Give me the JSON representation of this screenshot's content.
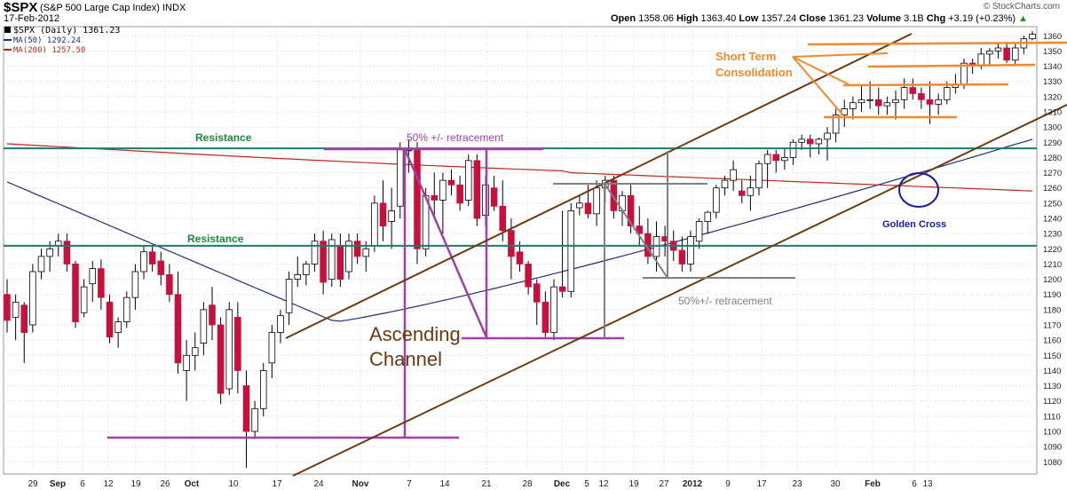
{
  "header": {
    "symbol": "$SPX",
    "index_name": "(S&P 500 Large Cap Index) INDX",
    "date": "17-Feb-2012",
    "brand": "© StockCharts.com",
    "open_label": "Open",
    "open": "1358.06",
    "high_label": "High",
    "high": "1363.40",
    "low_label": "Low",
    "low": "1357.24",
    "close_label": "Close",
    "close": "1361.23",
    "volume_label": "Volume",
    "volume": "3.1B",
    "chg_label": "Chg",
    "chg": "+3.19 (+0.23%)"
  },
  "legend": {
    "price": "$SPX (Daily) 1361.23",
    "ma50": "MA(50) 1292.24",
    "ma200": "MA(200) 1257.50"
  },
  "colors": {
    "up": "#ffffff",
    "down": "#c8103c",
    "ma50": "#1f2d7a",
    "ma200": "#c0281e",
    "teal": "#1e7a6e",
    "purple": "#a040a8",
    "brown": "#6b3a10",
    "orange": "#f08a30",
    "gray": "#808080",
    "blue": "#1a1aa8"
  },
  "annotations": {
    "resistance_upper": "Resistance",
    "resistance_lower": "Resistance",
    "retracement_1": "50% +/-  retracement",
    "retracement_2": "50%+/- retracement",
    "ascending_channel_1": "Ascending",
    "ascending_channel_2": "Channel",
    "short_term_1": "Short Term",
    "short_term_2": "Consolidation",
    "golden_cross": "Golden Cross"
  },
  "chart_data": {
    "type": "candlestick",
    "title": "$SPX (S&P 500 Large Cap Index) INDX",
    "ylim": [
      1072,
      1366
    ],
    "y_ticks": [
      1080,
      1090,
      1100,
      1110,
      1120,
      1130,
      1140,
      1150,
      1160,
      1170,
      1180,
      1190,
      1200,
      1210,
      1220,
      1230,
      1240,
      1250,
      1260,
      1270,
      1280,
      1290,
      1300,
      1310,
      1320,
      1330,
      1340,
      1350,
      1360
    ],
    "x_ticks": [
      "29",
      "Sep",
      "6",
      "12",
      "19",
      "26",
      "Oct",
      "10",
      "17",
      "24",
      "Nov",
      "7",
      "14",
      "21",
      "28",
      "Dec",
      "5",
      "12",
      "19",
      "27",
      "2012",
      "9",
      "17",
      "23",
      "30",
      "Feb",
      "6",
      "13"
    ],
    "resistance_levels": [
      1286,
      1222
    ],
    "candles": [
      [
        1190,
        1200,
        1165,
        1173
      ],
      [
        1175,
        1190,
        1160,
        1185
      ],
      [
        1183,
        1185,
        1145,
        1165
      ],
      [
        1170,
        1210,
        1165,
        1205
      ],
      [
        1205,
        1220,
        1200,
        1215
      ],
      [
        1215,
        1225,
        1205,
        1220
      ],
      [
        1222,
        1230,
        1215,
        1225
      ],
      [
        1225,
        1230,
        1205,
        1210
      ],
      [
        1210,
        1212,
        1168,
        1172
      ],
      [
        1178,
        1200,
        1175,
        1195
      ],
      [
        1197,
        1212,
        1185,
        1207
      ],
      [
        1207,
        1213,
        1180,
        1188
      ],
      [
        1185,
        1190,
        1158,
        1162
      ],
      [
        1165,
        1175,
        1155,
        1172
      ],
      [
        1172,
        1192,
        1168,
        1188
      ],
      [
        1188,
        1210,
        1180,
        1205
      ],
      [
        1205,
        1222,
        1200,
        1218
      ],
      [
        1218,
        1222,
        1205,
        1210
      ],
      [
        1212,
        1218,
        1196,
        1203
      ],
      [
        1203,
        1210,
        1185,
        1190
      ],
      [
        1190,
        1205,
        1138,
        1145
      ],
      [
        1140,
        1160,
        1120,
        1150
      ],
      [
        1150,
        1165,
        1140,
        1155
      ],
      [
        1158,
        1185,
        1150,
        1180
      ],
      [
        1183,
        1195,
        1160,
        1170
      ],
      [
        1170,
        1175,
        1118,
        1125
      ],
      [
        1128,
        1185,
        1124,
        1180
      ],
      [
        1175,
        1185,
        1125,
        1140
      ],
      [
        1130,
        1140,
        1076,
        1100
      ],
      [
        1100,
        1120,
        1095,
        1115
      ],
      [
        1115,
        1145,
        1110,
        1140
      ],
      [
        1145,
        1170,
        1135,
        1165
      ],
      [
        1165,
        1180,
        1158,
        1176
      ],
      [
        1178,
        1205,
        1170,
        1200
      ],
      [
        1200,
        1215,
        1195,
        1203
      ],
      [
        1203,
        1212,
        1196,
        1210
      ],
      [
        1210,
        1230,
        1205,
        1225
      ],
      [
        1225,
        1232,
        1190,
        1198
      ],
      [
        1200,
        1230,
        1195,
        1226
      ],
      [
        1222,
        1230,
        1195,
        1200
      ],
      [
        1205,
        1230,
        1200,
        1225
      ],
      [
        1225,
        1230,
        1210,
        1215
      ],
      [
        1215,
        1225,
        1205,
        1220
      ],
      [
        1222,
        1255,
        1218,
        1250
      ],
      [
        1250,
        1265,
        1225,
        1235
      ],
      [
        1238,
        1260,
        1220,
        1245
      ],
      [
        1248,
        1290,
        1240,
        1285
      ],
      [
        1285,
        1292,
        1270,
        1285
      ],
      [
        1285,
        1290,
        1210,
        1220
      ],
      [
        1220,
        1260,
        1215,
        1255
      ],
      [
        1255,
        1270,
        1240,
        1252
      ],
      [
        1252,
        1270,
        1230,
        1265
      ],
      [
        1265,
        1272,
        1255,
        1262
      ],
      [
        1262,
        1268,
        1245,
        1250
      ],
      [
        1252,
        1282,
        1248,
        1278
      ],
      [
        1278,
        1282,
        1235,
        1240
      ],
      [
        1242,
        1268,
        1235,
        1262
      ],
      [
        1260,
        1268,
        1245,
        1248
      ],
      [
        1248,
        1265,
        1225,
        1232
      ],
      [
        1232,
        1240,
        1200,
        1215
      ],
      [
        1218,
        1225,
        1205,
        1210
      ],
      [
        1210,
        1212,
        1190,
        1195
      ],
      [
        1197,
        1200,
        1170,
        1185
      ],
      [
        1185,
        1192,
        1162,
        1165
      ],
      [
        1165,
        1200,
        1160,
        1195
      ],
      [
        1195,
        1245,
        1188,
        1192
      ],
      [
        1192,
        1250,
        1188,
        1245
      ],
      [
        1247,
        1255,
        1242,
        1250
      ],
      [
        1250,
        1262,
        1240,
        1243
      ],
      [
        1243,
        1265,
        1235,
        1260
      ],
      [
        1260,
        1268,
        1250,
        1265
      ],
      [
        1265,
        1268,
        1240,
        1245
      ],
      [
        1245,
        1258,
        1235,
        1255
      ],
      [
        1255,
        1262,
        1230,
        1235
      ],
      [
        1235,
        1248,
        1222,
        1230
      ],
      [
        1230,
        1240,
        1210,
        1215
      ],
      [
        1215,
        1238,
        1205,
        1228
      ],
      [
        1228,
        1235,
        1215,
        1225
      ],
      [
        1225,
        1232,
        1212,
        1219
      ],
      [
        1219,
        1228,
        1205,
        1210
      ],
      [
        1210,
        1232,
        1205,
        1228
      ],
      [
        1225,
        1240,
        1220,
        1238
      ],
      [
        1238,
        1245,
        1230,
        1244
      ],
      [
        1244,
        1262,
        1240,
        1260
      ],
      [
        1260,
        1268,
        1255,
        1265
      ],
      [
        1265,
        1278,
        1258,
        1272
      ],
      [
        1258,
        1265,
        1250,
        1255
      ],
      [
        1255,
        1268,
        1245,
        1260
      ],
      [
        1260,
        1278,
        1255,
        1276
      ],
      [
        1276,
        1285,
        1260,
        1282
      ],
      [
        1282,
        1285,
        1270,
        1278
      ],
      [
        1278,
        1286,
        1272,
        1280
      ],
      [
        1280,
        1292,
        1275,
        1290
      ],
      [
        1290,
        1295,
        1285,
        1292
      ],
      [
        1292,
        1295,
        1280,
        1289
      ],
      [
        1289,
        1293,
        1282,
        1292
      ],
      [
        1292,
        1300,
        1278,
        1296
      ],
      [
        1296,
        1312,
        1290,
        1308
      ],
      [
        1308,
        1318,
        1300,
        1312
      ],
      [
        1312,
        1320,
        1305,
        1316
      ],
      [
        1316,
        1328,
        1310,
        1318
      ],
      [
        1318,
        1330,
        1312,
        1318
      ],
      [
        1318,
        1326,
        1308,
        1314
      ],
      [
        1314,
        1320,
        1308,
        1316
      ],
      [
        1316,
        1324,
        1305,
        1318
      ],
      [
        1318,
        1332,
        1312,
        1326
      ],
      [
        1326,
        1332,
        1318,
        1322
      ],
      [
        1322,
        1326,
        1312,
        1318
      ],
      [
        1318,
        1330,
        1302,
        1315
      ],
      [
        1315,
        1322,
        1308,
        1318
      ],
      [
        1318,
        1330,
        1315,
        1326
      ],
      [
        1326,
        1335,
        1322,
        1328
      ],
      [
        1328,
        1345,
        1325,
        1342
      ],
      [
        1342,
        1345,
        1335,
        1340
      ],
      [
        1340,
        1352,
        1338,
        1348
      ],
      [
        1348,
        1352,
        1340,
        1350
      ],
      [
        1350,
        1355,
        1345,
        1352
      ],
      [
        1352,
        1356,
        1342,
        1344
      ],
      [
        1344,
        1355,
        1340,
        1352
      ],
      [
        1352,
        1360,
        1348,
        1358
      ],
      [
        1358,
        1363,
        1357,
        1361
      ]
    ]
  }
}
